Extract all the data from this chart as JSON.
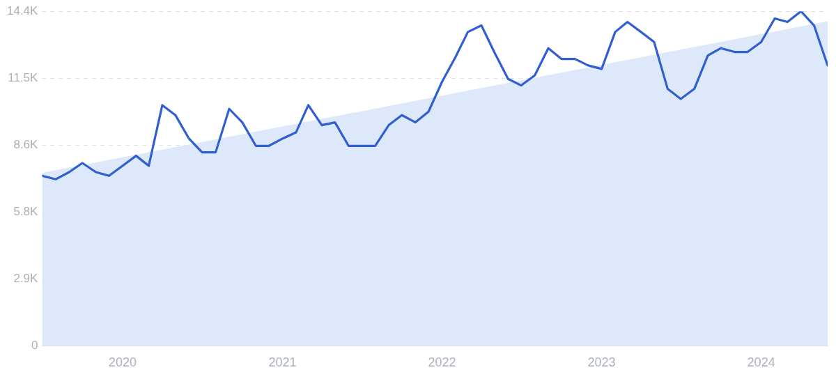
{
  "chart_data": {
    "type": "line",
    "x": [
      "2019-07",
      "2019-08",
      "2019-09",
      "2019-10",
      "2019-11",
      "2019-12",
      "2020-01",
      "2020-02",
      "2020-03",
      "2020-04",
      "2020-05",
      "2020-06",
      "2020-07",
      "2020-08",
      "2020-09",
      "2020-10",
      "2020-11",
      "2020-12",
      "2021-01",
      "2021-02",
      "2021-03",
      "2021-04",
      "2021-05",
      "2021-06",
      "2021-07",
      "2021-08",
      "2021-09",
      "2021-10",
      "2021-11",
      "2021-12",
      "2022-01",
      "2022-02",
      "2022-03",
      "2022-04",
      "2022-05",
      "2022-06",
      "2022-07",
      "2022-08",
      "2022-09",
      "2022-10",
      "2022-11",
      "2022-12",
      "2023-01",
      "2023-02",
      "2023-03",
      "2023-04",
      "2023-05",
      "2023-06",
      "2023-07",
      "2023-08",
      "2023-09",
      "2023-10",
      "2023-11",
      "2023-12",
      "2024-01",
      "2024-02",
      "2024-03",
      "2024-04",
      "2024-05",
      "2024-06"
    ],
    "series": [
      {
        "type": "area",
        "color": "#dde9fb",
        "x": [
          "2019-07",
          "2024-06"
        ],
        "values": [
          7450,
          13970
        ]
      },
      {
        "color": "#2f5fd0",
        "values": [
          7320,
          7170,
          7480,
          7870,
          7480,
          7320,
          7750,
          8180,
          7750,
          10360,
          9930,
          8920,
          8330,
          8330,
          10200,
          9620,
          8610,
          8610,
          8920,
          9190,
          10360,
          9500,
          9620,
          8610,
          8610,
          8610,
          9500,
          9930,
          9620,
          10080,
          11370,
          12440,
          13510,
          13790,
          12620,
          11490,
          11210,
          11640,
          12810,
          12350,
          12350,
          12070,
          11920,
          13510,
          13940,
          13510,
          13080,
          11060,
          10630,
          11060,
          12500,
          12810,
          12650,
          12650,
          13080,
          14090,
          13940,
          14400,
          13790,
          12070
        ]
      }
    ],
    "xlim": [
      "2019-07",
      "2024-06"
    ],
    "xticks": [
      "2020",
      "2021",
      "2022",
      "2023",
      "2024"
    ],
    "ylim": [
      0,
      14400
    ],
    "yticks": [
      0,
      {
        "value": 2880,
        "label": "2.9K"
      },
      {
        "value": 5760,
        "label": "5.8K"
      },
      {
        "value": 8640,
        "label": "8.6K"
      },
      {
        "value": 11520,
        "label": "11.5K"
      },
      {
        "value": 14400,
        "label": "14.4K"
      }
    ],
    "grid": "y",
    "line_style": "solid",
    "marker": "none",
    "legend": false
  }
}
